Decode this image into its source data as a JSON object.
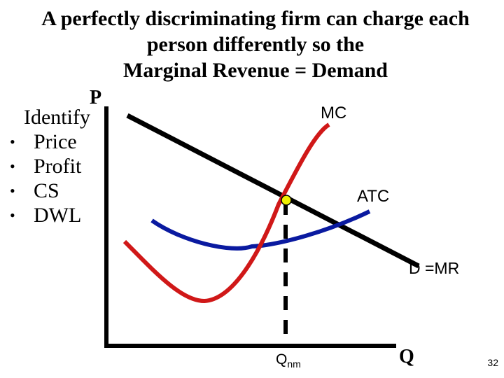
{
  "title": {
    "line1": "A perfectly discriminating firm can charge each",
    "line2": "person differently so the",
    "line3": "Marginal Revenue = Demand"
  },
  "sidebar": {
    "heading": "Identify",
    "items": [
      {
        "label": "Price"
      },
      {
        "label": "Profit"
      },
      {
        "label": "CS"
      },
      {
        "label": "DWL"
      }
    ]
  },
  "diagram": {
    "y_axis_label": "P",
    "x_axis_label": "Q",
    "mc_label": "MC",
    "atc_label": "ATC",
    "demand_label": "D =MR",
    "quantity_label_main": "Q",
    "quantity_label_sub": "nm",
    "colors": {
      "mc": "#d01818",
      "atc": "#0a1aa0",
      "demand": "#000000",
      "axes": "#000000",
      "point": "#f0f000"
    }
  },
  "slide_number": "32"
}
